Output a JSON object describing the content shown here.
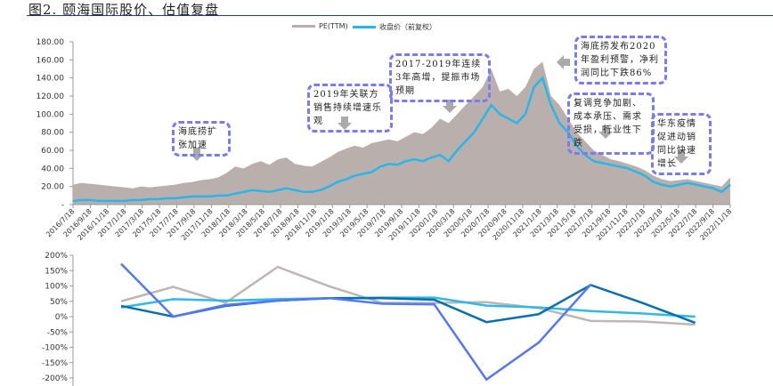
{
  "title": "图2. 颐海国际股价、估值复盘",
  "annotations": [
    "海底捞扩张加速",
    "2019年关联方销售持续增速乐观",
    "2017-2019年连续3年高增，提振市场预期",
    "海底捞发布2020年盈利预警，净利润同比下跌86%",
    "复调竞争加剧、成本承压、需求受损，行业性下跌",
    "华东疫情促进动销同比快速增长"
  ],
  "chart_data": [
    {
      "type": "area",
      "title": "",
      "ylim": [
        0,
        180
      ],
      "yticks": [
        "-",
        "20.00",
        "40.00",
        "60.00",
        "80.00",
        "100.00",
        "120.00",
        "140.00",
        "160.00",
        "180.00"
      ],
      "xticks": [
        "2016/7/18",
        "2016/9/18",
        "2016/11/18",
        "2017/1/18",
        "2017/3/18",
        "2017/5/18",
        "2017/7/18",
        "2017/9/18",
        "2017/11/18",
        "2018/1/18",
        "2018/3/18",
        "2018/5/18",
        "2018/7/18",
        "2018/9/18",
        "2018/11/18",
        "2019/1/18",
        "2019/3/18",
        "2019/5/18",
        "2019/7/18",
        "2019/9/18",
        "2019/11/18",
        "2020/1/18",
        "2020/3/18",
        "2020/5/18",
        "2020/7/18",
        "2020/9/18",
        "2020/11/18",
        "2021/1/18",
        "2021/3/18",
        "2021/5/18",
        "2021/7/18",
        "2021/9/18",
        "2021/11/18",
        "2022/1/18",
        "2022/3/18",
        "2022/5/18",
        "2022/7/18",
        "2022/9/18",
        "2022/11/18"
      ],
      "legend_position": "top-right",
      "series": [
        {
          "name": "PE(TTM)",
          "color": "#b9b0ae",
          "style": "area",
          "values": [
            22,
            24,
            23,
            22,
            21,
            20,
            19,
            18,
            20,
            19,
            20,
            21,
            22,
            24,
            25,
            27,
            28,
            30,
            35,
            42,
            40,
            45,
            48,
            44,
            50,
            52,
            45,
            43,
            42,
            47,
            52,
            58,
            62,
            65,
            63,
            68,
            70,
            72,
            70,
            75,
            80,
            78,
            85,
            95,
            90,
            100,
            110,
            120,
            130,
            150,
            125,
            128,
            120,
            130,
            150,
            158,
            120,
            110,
            95,
            80,
            70,
            60,
            55,
            50,
            48,
            45,
            42,
            38,
            32,
            28,
            26,
            27,
            28,
            26,
            24,
            22,
            20,
            30
          ]
        },
        {
          "name": "收盘价（前复权）",
          "color": "#29b6e6",
          "style": "line",
          "values": [
            4,
            5,
            5,
            4,
            4,
            4,
            4,
            5,
            5,
            6,
            6,
            7,
            7,
            8,
            9,
            9,
            9,
            10,
            10,
            12,
            14,
            16,
            15,
            14,
            16,
            18,
            16,
            14,
            14,
            16,
            20,
            25,
            28,
            32,
            34,
            36,
            42,
            45,
            44,
            48,
            50,
            48,
            52,
            55,
            48,
            60,
            70,
            80,
            95,
            110,
            100,
            95,
            90,
            100,
            130,
            140,
            110,
            90,
            80,
            65,
            55,
            48,
            46,
            44,
            42,
            40,
            36,
            32,
            25,
            22,
            20,
            22,
            24,
            22,
            20,
            18,
            14,
            22
          ]
        }
      ]
    },
    {
      "type": "line",
      "ylim": [
        -200,
        200
      ],
      "yticks": [
        "-200%",
        "-150%",
        "-100%",
        "-50%",
        "0%",
        "50%",
        "100%",
        "150%",
        "200%"
      ],
      "series": [
        {
          "name": "grey",
          "color": "#bdb6b4",
          "values": [
            50,
            97,
            45,
            162,
            98,
            45,
            45,
            47,
            28,
            -14,
            -16,
            -26
          ]
        },
        {
          "name": "light-blue",
          "color": "#2fb9e8",
          "values": [
            30,
            57,
            52,
            57,
            60,
            62,
            62,
            36,
            30,
            18,
            10,
            0
          ]
        },
        {
          "name": "dark-blue",
          "color": "#0a6fb0",
          "values": [
            35,
            0,
            35,
            52,
            60,
            60,
            55,
            -18,
            8,
            103,
            44,
            -20
          ]
        },
        {
          "name": "blue",
          "color": "#5577f5",
          "values": [
            172,
            0,
            38,
            52,
            60,
            42,
            40,
            -205,
            -85,
            105,
            null,
            null
          ]
        }
      ]
    }
  ]
}
